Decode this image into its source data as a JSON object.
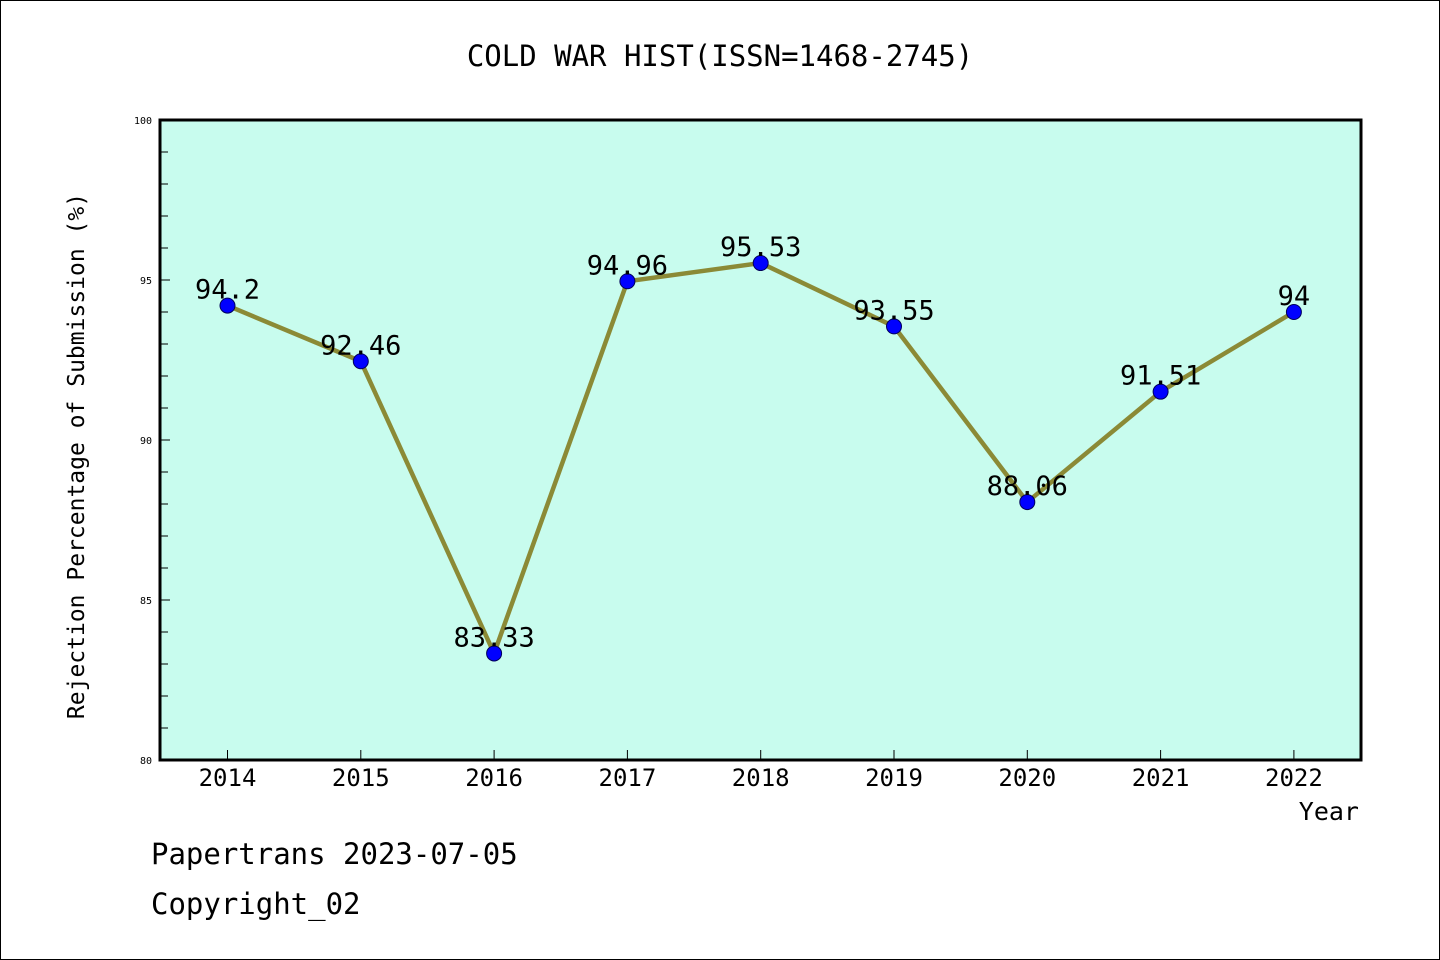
{
  "chart_data": {
    "type": "line",
    "title": "COLD WAR HIST(ISSN=1468-2745)",
    "xlabel": "Year",
    "ylabel": "Rejection Percentage of Submission (%)",
    "categories": [
      "2014",
      "2015",
      "2016",
      "2017",
      "2018",
      "2019",
      "2020",
      "2021",
      "2022"
    ],
    "series": [
      {
        "values": [
          94.2,
          92.46,
          83.33,
          94.96,
          95.53,
          93.55,
          88.06,
          91.51,
          94
        ],
        "labels": [
          "94.2",
          "92.46",
          "83.33",
          "94.96",
          "95.53",
          "93.55",
          "88.06",
          "91.51",
          "94"
        ]
      }
    ],
    "ylim": [
      80,
      100
    ],
    "yticks": [
      "80",
      "85",
      "90",
      "95",
      "100"
    ],
    "grid": false,
    "colors": {
      "plot_background": "#c8fcee",
      "line": "#8b8a36",
      "marker": "#0000ff"
    }
  },
  "footer": {
    "line1": "Papertrans 2023-07-05",
    "line2": "Copyright_02"
  }
}
